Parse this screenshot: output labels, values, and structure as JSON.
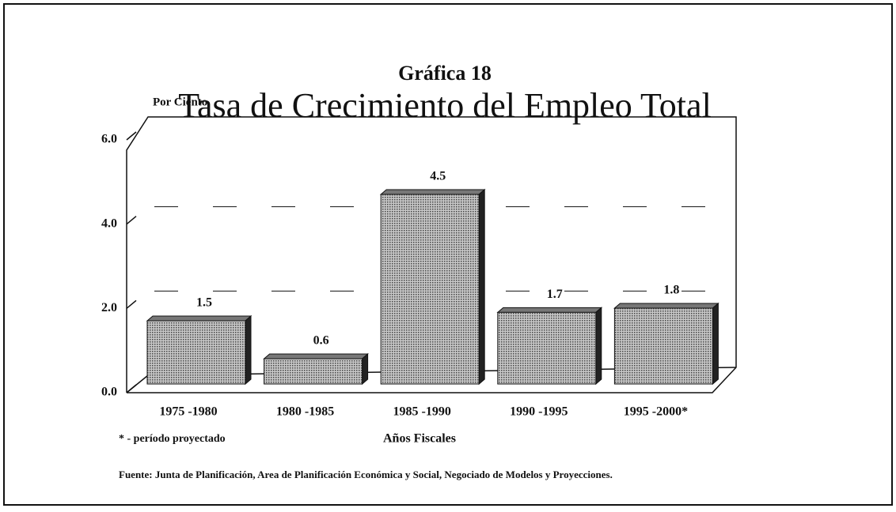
{
  "chart_data": {
    "type": "bar",
    "subtitle": "Gráfica 18",
    "title": "Tasa de Crecimiento del Empleo Total",
    "y_label": "Por Ciento",
    "x_label": "Años Fiscales",
    "note": "* - período proyectado",
    "source": "Fuente: Junta de Planificación, Area de Planificación Económica y Social, Negociado de Modelos y Proyecciones.",
    "categories": [
      "1975 -1980",
      "1980 -1985",
      "1985 -1990",
      "1990 -1995",
      "1995 -2000*"
    ],
    "values": [
      1.5,
      0.6,
      4.5,
      1.7,
      1.8
    ],
    "color": "#9a9a9a",
    "ylim": [
      0,
      6
    ],
    "yticks": [
      {
        "value": 0,
        "label": "0.0"
      },
      {
        "value": 2,
        "label": "2.0"
      },
      {
        "value": 4,
        "label": "4.0"
      },
      {
        "value": 6,
        "label": "6.0"
      }
    ],
    "grid": true
  }
}
